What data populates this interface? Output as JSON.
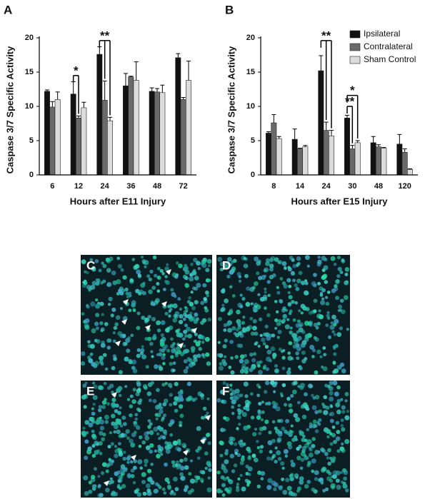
{
  "chart_data": [
    {
      "type": "bar",
      "panel": "A",
      "x_label": "Hours after E11 Injury",
      "y_label": "Caspase 3/7 Specific Activity",
      "categories": [
        "6",
        "12",
        "24",
        "36",
        "48",
        "72"
      ],
      "ylim": [
        0,
        20
      ],
      "yticks": [
        0,
        5,
        10,
        15,
        20
      ],
      "series": [
        {
          "name": "Ipsilateral",
          "color": "#111111",
          "values": [
            12.2,
            11.8,
            17.6,
            13.0,
            12.2,
            17.1
          ],
          "errors": [
            0.2,
            1.8,
            1.1,
            1.8,
            0.5,
            0.6
          ]
        },
        {
          "name": "Contralateral",
          "color": "#6a6a6a",
          "values": [
            9.9,
            8.3,
            10.9,
            14.3,
            12.1,
            11.0
          ],
          "errors": [
            0.8,
            0.3,
            2.8,
            0.1,
            0.5,
            0.3
          ]
        },
        {
          "name": "Sham Control",
          "color": "#dcdcdc",
          "values": [
            11.0,
            9.8,
            7.9,
            13.8,
            12.0,
            13.8
          ],
          "errors": [
            1.1,
            0.8,
            0.5,
            2.7,
            1.1,
            2.8
          ]
        }
      ],
      "annotations": [
        "*",
        "**"
      ],
      "legend": false
    },
    {
      "type": "bar",
      "panel": "B",
      "x_label": "Hours after E15 Injury",
      "y_label": "Caspase 3/7 Specific Activity",
      "categories": [
        "8",
        "14",
        "24",
        "30",
        "48",
        "120"
      ],
      "ylim": [
        0,
        20
      ],
      "yticks": [
        0,
        5,
        10,
        15,
        20
      ],
      "series": [
        {
          "name": "Ipsilateral",
          "color": "#111111",
          "values": [
            6.1,
            5.2,
            15.2,
            8.3,
            4.7,
            4.5
          ],
          "errors": [
            0.2,
            1.5,
            2.2,
            0.4,
            0.9,
            1.4
          ]
        },
        {
          "name": "Contralateral",
          "color": "#6a6a6a",
          "values": [
            7.6,
            3.8,
            6.5,
            3.8,
            4.1,
            3.3
          ],
          "errors": [
            1.2,
            0.1,
            1.2,
            0.5,
            0.3,
            0.5
          ]
        },
        {
          "name": "Sham Control",
          "color": "#dcdcdc",
          "values": [
            5.3,
            4.1,
            5.7,
            4.7,
            3.9,
            0.8
          ],
          "errors": [
            0.3,
            0.2,
            0.8,
            0.3,
            0.1,
            0.1
          ]
        }
      ],
      "annotations": [
        "**",
        "*",
        "**"
      ],
      "legend": "upper right"
    }
  ],
  "images": [
    {
      "label": "C"
    },
    {
      "label": "D"
    },
    {
      "label": "E"
    },
    {
      "label": "F"
    }
  ]
}
